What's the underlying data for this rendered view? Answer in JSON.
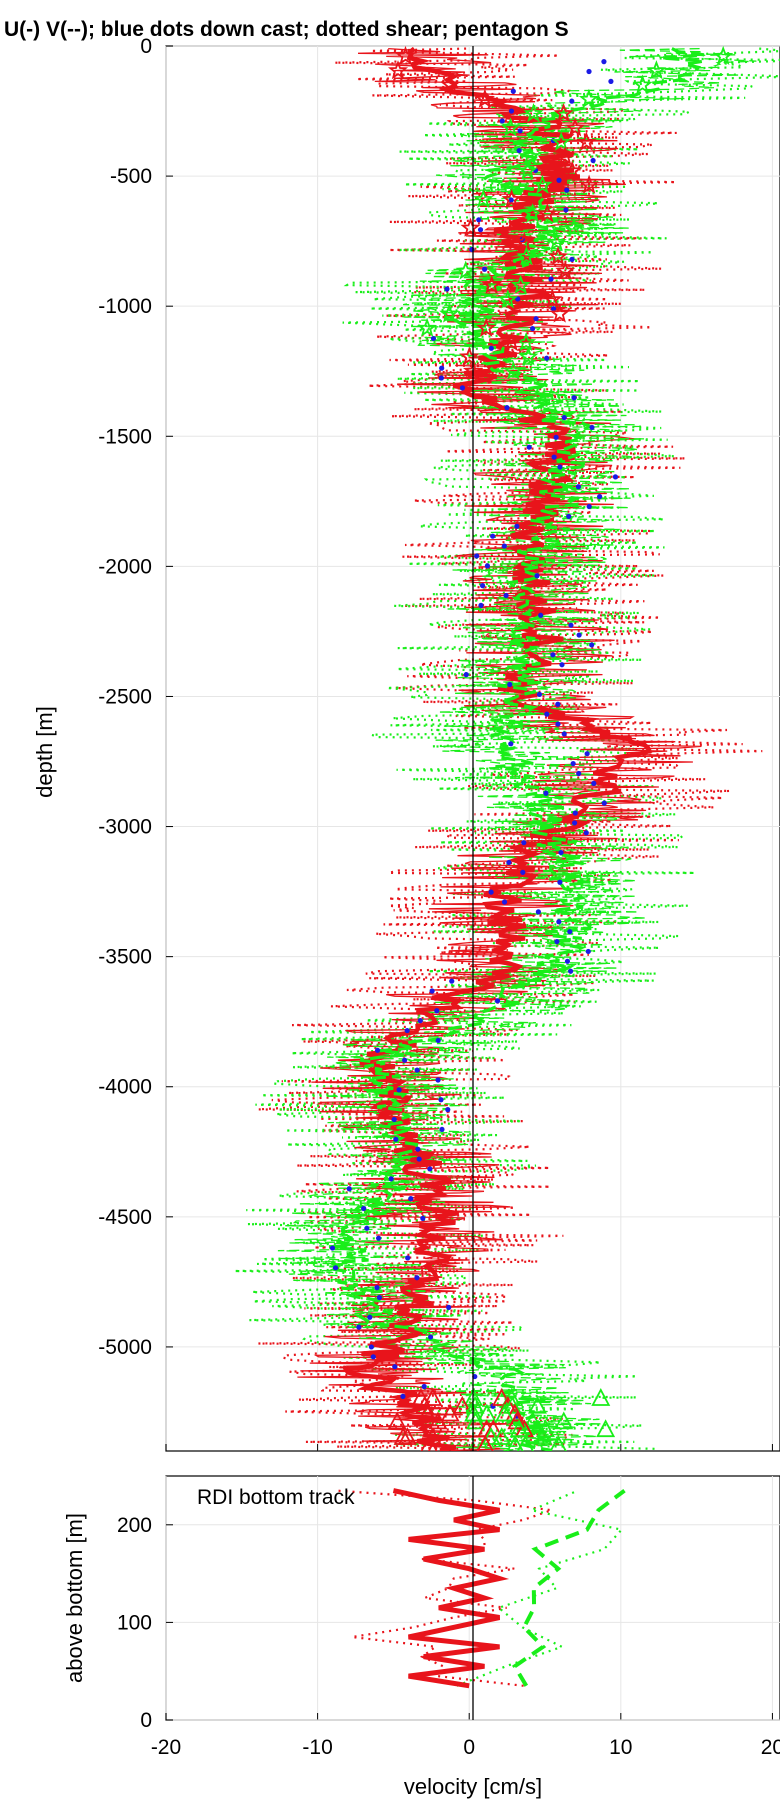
{
  "chart_data": [
    {
      "type": "line",
      "title": "U(-) V(--); blue dots down cast; dotted shear; pentagon S",
      "xlabel": "",
      "ylabel": "depth [m]",
      "xlim": [
        -20,
        20.5
      ],
      "ylim": [
        -5400,
        0
      ],
      "yticks": [
        0,
        -500,
        -1000,
        -1500,
        -2000,
        -2500,
        -3000,
        -3500,
        -4000,
        -4500,
        -5000
      ],
      "xticks": [
        -20,
        -10,
        0,
        10,
        20
      ],
      "grid": true,
      "colors": {
        "u": "#e8141b",
        "v": "#19ee19",
        "downcast": "#1a1ae6"
      },
      "series": [
        {
          "key": "U_smooth",
          "color": "#e8141b",
          "style": "thick",
          "depth": [
            -100,
            -300,
            -500,
            -700,
            -900,
            -1100,
            -1300,
            -1500,
            -1700,
            -1900,
            -2100,
            -2300,
            -2500,
            -2700,
            -2900,
            -3100,
            -3300,
            -3500,
            -3700,
            -3900,
            -4100,
            -4300,
            -4500,
            -4700,
            -4900,
            -5100,
            -5300
          ],
          "values": [
            -3,
            5,
            6,
            3,
            4,
            3,
            0,
            6,
            5,
            4,
            4,
            5,
            3,
            11,
            8,
            4,
            2,
            3,
            -2,
            -6,
            -5,
            -3,
            -2,
            -3,
            -4,
            -7,
            -2
          ]
        },
        {
          "key": "V_smooth",
          "color": "#19ee19",
          "style": "thick",
          "depth": [
            -100,
            -300,
            -500,
            -700,
            -900,
            -1100,
            -1300,
            -1500,
            -1700,
            -1900,
            -2100,
            -2300,
            -2500,
            -2700,
            -2900,
            -3100,
            -3300,
            -3500,
            -3700,
            -3900,
            -4100,
            -4300,
            -4500,
            -4700,
            -4900,
            -5100,
            -5300
          ],
          "values": [
            14,
            5,
            2,
            6,
            1,
            0,
            4,
            7,
            6,
            5,
            3,
            4,
            3,
            2,
            5,
            6,
            7,
            6,
            2,
            -6,
            -5,
            -4,
            -7,
            -8,
            -6,
            3,
            4
          ]
        }
      ]
    },
    {
      "type": "line",
      "title": "",
      "xlabel": "velocity [cm/s]",
      "ylabel": "above bottom [m]",
      "xlim": [
        -20,
        20.5
      ],
      "ylim": [
        0,
        250
      ],
      "yticks": [
        0,
        100,
        200
      ],
      "xticks": [
        -20,
        -10,
        0,
        10,
        20
      ],
      "grid": true,
      "annotation": "RDI bottom track",
      "series": [
        {
          "key": "U_bt",
          "color": "#e8141b",
          "height": [
            35,
            45,
            55,
            65,
            75,
            85,
            95,
            105,
            115,
            125,
            135,
            145,
            155,
            165,
            175,
            185,
            195,
            205,
            215,
            225,
            235
          ],
          "values": [
            0,
            -4,
            1,
            -3,
            2,
            -4,
            -1,
            2,
            -2,
            1,
            -1,
            2,
            0,
            -3,
            1,
            -4,
            2,
            -1,
            2,
            -2,
            -5
          ]
        },
        {
          "key": "V_bt",
          "color": "#19ee19",
          "height": [
            35,
            55,
            75,
            95,
            115,
            135,
            155,
            175,
            195,
            215,
            235
          ],
          "values": [
            3,
            2,
            4,
            3,
            5,
            4,
            6,
            5,
            8,
            9,
            10
          ]
        }
      ]
    }
  ],
  "ticks_main_x": [
    "-20",
    "-10",
    "0",
    "10",
    "20"
  ],
  "ticks_main_y": [
    "0",
    "-500",
    "-1000",
    "-1500",
    "-2000",
    "-2500",
    "-3000",
    "-3500",
    "-4000",
    "-4500",
    "-5000"
  ],
  "ticks_sub_y": [
    "0",
    "100",
    "200"
  ]
}
